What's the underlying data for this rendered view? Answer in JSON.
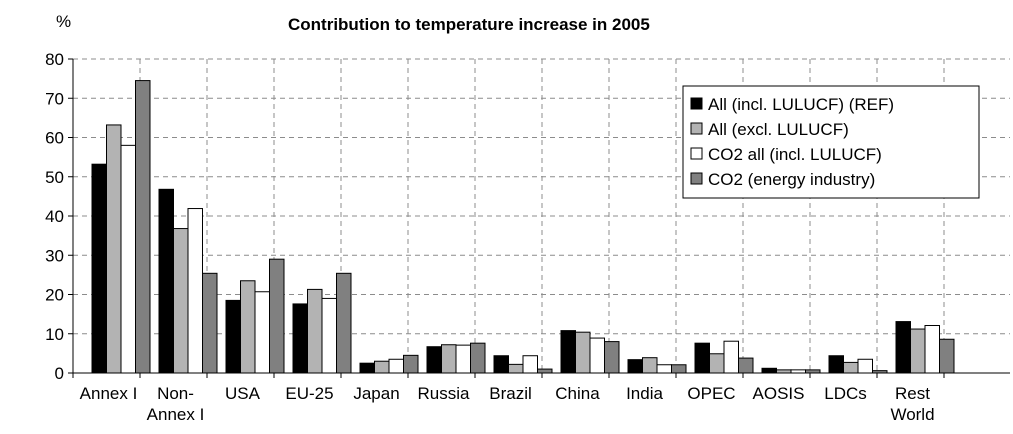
{
  "chart_data": {
    "type": "bar",
    "title": "Contribution to temperature increase in 2005",
    "ylabel": "%",
    "xlabel": "",
    "ylim": [
      0,
      80
    ],
    "yticks": [
      0,
      10,
      20,
      30,
      40,
      50,
      60,
      70,
      80
    ],
    "grid": "dashed",
    "legend_position": "top-right",
    "categories": [
      [
        "Annex I"
      ],
      [
        "Non-",
        "Annex I"
      ],
      [
        "USA"
      ],
      [
        "EU-25"
      ],
      [
        "Japan"
      ],
      [
        "Russia"
      ],
      [
        "Brazil"
      ],
      [
        "China"
      ],
      [
        "India"
      ],
      [
        "OPEC"
      ],
      [
        "AOSIS"
      ],
      [
        "LDCs"
      ],
      [
        "Rest",
        "World"
      ]
    ],
    "series": [
      {
        "name": "All (incl. LULUCF) (REF)",
        "color": "#000000",
        "values": [
          53.2,
          46.8,
          18.5,
          17.6,
          2.5,
          6.7,
          4.4,
          10.8,
          3.4,
          7.6,
          1.2,
          4.4,
          13.1
        ]
      },
      {
        "name": "All (excl. LULUCF)",
        "color": "#b3b3b3",
        "values": [
          63.2,
          36.8,
          23.5,
          21.3,
          3.0,
          7.2,
          2.2,
          10.4,
          3.9,
          4.9,
          0.8,
          2.7,
          11.2
        ]
      },
      {
        "name": "CO2 all (incl. LULUCF)",
        "color": "#ffffff",
        "values": [
          58.0,
          41.9,
          20.7,
          19.0,
          3.5,
          7.1,
          4.4,
          8.9,
          2.1,
          8.1,
          0.8,
          3.5,
          12.1
        ]
      },
      {
        "name": "CO2 (energy industry)",
        "color": "#808080",
        "values": [
          74.5,
          25.4,
          29.0,
          25.4,
          4.5,
          7.6,
          1.0,
          8.0,
          2.1,
          3.8,
          0.8,
          0.6,
          8.6
        ]
      }
    ]
  }
}
